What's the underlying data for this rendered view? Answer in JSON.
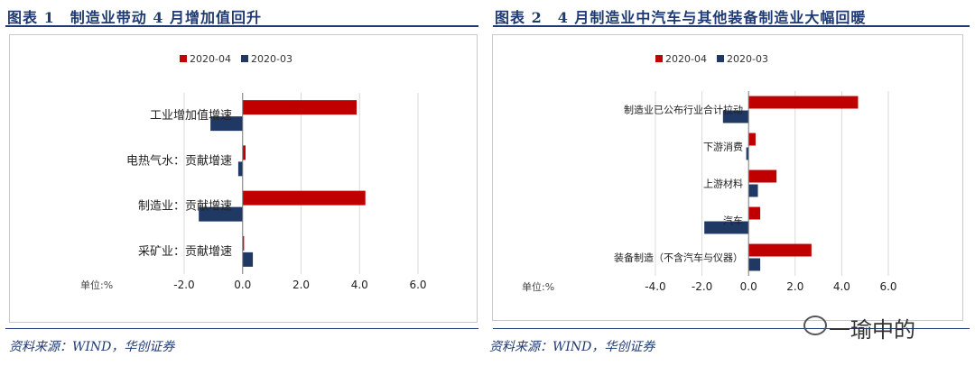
{
  "panels": [
    {
      "title": "图表 1　制造业带动 4 月增加值回升",
      "source": "资料来源：WIND，华创证券",
      "unit_label": "单位:%",
      "colors": {
        "s2020_04": "#c00000",
        "s2020_03": "#1f3864"
      }
    },
    {
      "title": "图表 2　4 月制造业中汽车与其他装备制造业大幅回暖",
      "source": "资料来源：WIND，华创证券",
      "unit_label": "单位:%",
      "colors": {
        "s2020_04": "#c00000",
        "s2020_03": "#1f3864"
      }
    }
  ],
  "watermark": "一瑜中的",
  "chart_data": [
    {
      "type": "bar",
      "orientation": "horizontal",
      "categories": [
        "工业增加值增速",
        "电热气水：贡献增速",
        "制造业：贡献增速",
        "采矿业：贡献增速"
      ],
      "series": [
        {
          "name": "2020-04",
          "values": [
            3.9,
            0.1,
            4.2,
            0.05
          ]
        },
        {
          "name": "2020-03",
          "values": [
            -1.1,
            -0.15,
            -1.5,
            0.35
          ]
        }
      ],
      "xlim": [
        -2.0,
        6.0
      ],
      "xticks": [
        "-2.0",
        "0.0",
        "2.0",
        "4.0",
        "6.0"
      ],
      "grid": true,
      "legend": "top-center"
    },
    {
      "type": "bar",
      "orientation": "horizontal",
      "categories": [
        "制造业已公布行业合计拉动",
        "下游消费",
        "上游材料",
        "汽车",
        "装备制造（不含汽车与仪器）"
      ],
      "series": [
        {
          "name": "2020-04",
          "values": [
            4.7,
            0.3,
            1.2,
            0.5,
            2.7
          ]
        },
        {
          "name": "2020-03",
          "values": [
            -1.1,
            -0.1,
            0.4,
            -1.9,
            0.5
          ]
        }
      ],
      "xlim": [
        -4.0,
        6.0
      ],
      "xticks": [
        "-4.0",
        "-2.0",
        "0.0",
        "2.0",
        "4.0",
        "6.0"
      ],
      "grid": true,
      "legend": "top-center"
    }
  ]
}
